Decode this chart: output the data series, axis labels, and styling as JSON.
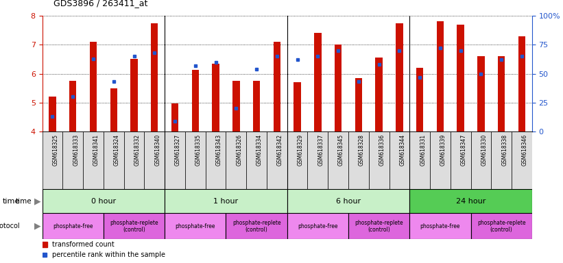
{
  "title": "GDS3896 / 263411_at",
  "samples": [
    "GSM618325",
    "GSM618333",
    "GSM618341",
    "GSM618324",
    "GSM618332",
    "GSM618340",
    "GSM618327",
    "GSM618335",
    "GSM618343",
    "GSM618326",
    "GSM618334",
    "GSM618342",
    "GSM618329",
    "GSM618337",
    "GSM618345",
    "GSM618328",
    "GSM618336",
    "GSM618344",
    "GSM618331",
    "GSM618339",
    "GSM618347",
    "GSM618330",
    "GSM618338",
    "GSM618346"
  ],
  "transformed_count": [
    5.2,
    5.75,
    7.1,
    5.5,
    6.5,
    7.75,
    4.97,
    6.12,
    6.35,
    5.75,
    5.75,
    7.1,
    5.7,
    7.4,
    7.0,
    5.85,
    6.55,
    7.75,
    6.2,
    7.82,
    7.7,
    6.6,
    6.6,
    7.3
  ],
  "percentile_rank": [
    13,
    30,
    63,
    43,
    65,
    68,
    9,
    57,
    60,
    20,
    54,
    65,
    62,
    65,
    70,
    43,
    58,
    70,
    47,
    72,
    70,
    50,
    62,
    65
  ],
  "time_groups": [
    {
      "label": "0 hour",
      "start": 0,
      "end": 6,
      "color_light": "#c8f0c8",
      "color_dark": "#c8f0c8"
    },
    {
      "label": "1 hour",
      "start": 6,
      "end": 12,
      "color_light": "#c8f0c8",
      "color_dark": "#c8f0c8"
    },
    {
      "label": "6 hour",
      "start": 12,
      "end": 18,
      "color_light": "#c8f0c8",
      "color_dark": "#c8f0c8"
    },
    {
      "label": "24 hour",
      "start": 18,
      "end": 24,
      "color_light": "#55cc55",
      "color_dark": "#55cc55"
    }
  ],
  "protocol_groups": [
    {
      "label": "phosphate-free",
      "start": 0,
      "end": 3,
      "color": "#ee88ee"
    },
    {
      "label": "phosphate-replete\n(control)",
      "start": 3,
      "end": 6,
      "color": "#dd66dd"
    },
    {
      "label": "phosphate-free",
      "start": 6,
      "end": 9,
      "color": "#ee88ee"
    },
    {
      "label": "phosphate-replete\n(control)",
      "start": 9,
      "end": 12,
      "color": "#dd66dd"
    },
    {
      "label": "phosphate-free",
      "start": 12,
      "end": 15,
      "color": "#ee88ee"
    },
    {
      "label": "phosphate-replete\n(control)",
      "start": 15,
      "end": 18,
      "color": "#dd66dd"
    },
    {
      "label": "phosphate-free",
      "start": 18,
      "end": 21,
      "color": "#ee88ee"
    },
    {
      "label": "phosphate-replete\n(control)",
      "start": 21,
      "end": 24,
      "color": "#dd66dd"
    }
  ],
  "ylim": [
    4,
    8
  ],
  "yticks": [
    4,
    5,
    6,
    7,
    8
  ],
  "y2lim": [
    0,
    100
  ],
  "y2ticks": [
    0,
    25,
    50,
    75,
    100
  ],
  "y2ticklabels": [
    "0",
    "25",
    "50",
    "75",
    "100%"
  ],
  "bar_color": "#cc1100",
  "marker_color": "#2255cc",
  "bar_width": 0.35,
  "bg_color": "#ffffff",
  "grid_color": "#111111",
  "xtick_bg": "#dddddd",
  "group_separators": [
    6,
    12,
    18
  ]
}
